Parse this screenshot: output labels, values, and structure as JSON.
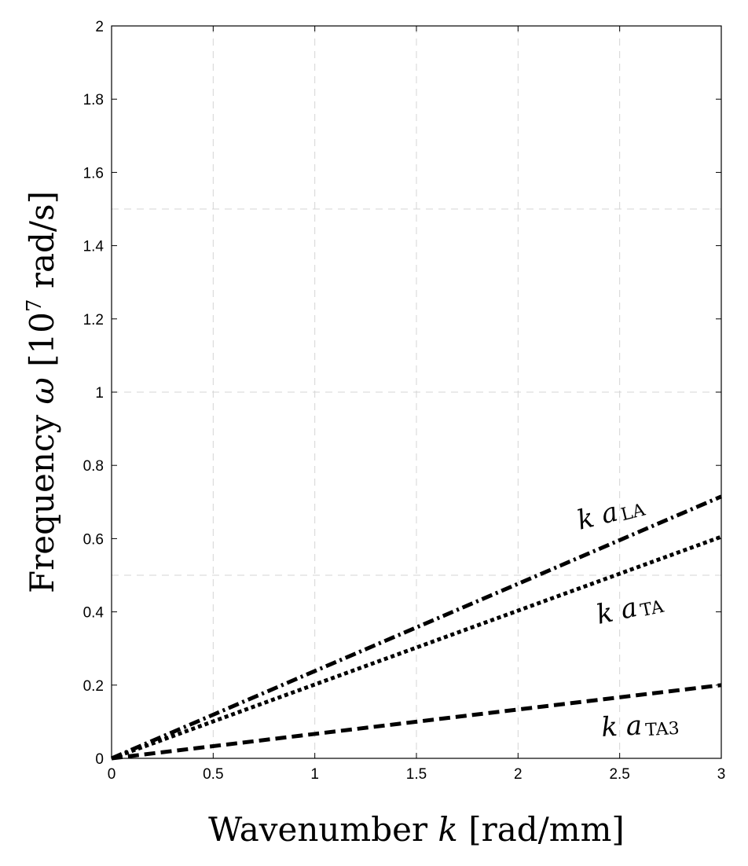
{
  "chart_data": {
    "type": "line",
    "xlabel_text": "Wavenumber",
    "xlabel_symbol": "k",
    "xlabel_unit": "[rad/mm]",
    "ylabel_text": "Frequency",
    "ylabel_symbol": "ω",
    "ylabel_unit_pre": "[10",
    "ylabel_unit_exp": "7",
    "ylabel_unit_post": " rad/s]",
    "xlim": [
      0,
      3
    ],
    "ylim": [
      0,
      2
    ],
    "grid": true,
    "legend": "none",
    "x_ticks": [
      {
        "value": 0,
        "label": "0"
      },
      {
        "value": 0.5,
        "label": "0.5"
      },
      {
        "value": 1,
        "label": "1"
      },
      {
        "value": 1.5,
        "label": "1.5"
      },
      {
        "value": 2,
        "label": "2"
      },
      {
        "value": 2.5,
        "label": "2.5"
      },
      {
        "value": 3,
        "label": "3"
      }
    ],
    "y_ticks": [
      {
        "value": 0,
        "label": "0"
      },
      {
        "value": 0.2,
        "label": "0.2"
      },
      {
        "value": 0.4,
        "label": "0.4"
      },
      {
        "value": 0.6,
        "label": "0.6"
      },
      {
        "value": 0.8,
        "label": "0.8"
      },
      {
        "value": 1,
        "label": "1"
      },
      {
        "value": 1.2,
        "label": "1.2"
      },
      {
        "value": 1.4,
        "label": "1.4"
      },
      {
        "value": 1.6,
        "label": "1.6"
      },
      {
        "value": 1.8,
        "label": "1.8"
      },
      {
        "value": 2,
        "label": "2"
      }
    ],
    "x_grid": [
      0.5,
      1,
      1.5,
      2,
      2.5
    ],
    "y_grid": [
      0.5,
      1,
      1.5
    ],
    "series": [
      {
        "name_main": "k a",
        "name_sub": "LA",
        "x": [
          0,
          3
        ],
        "y": [
          0,
          0.715
        ],
        "style": "dashdot",
        "color": "#000000"
      },
      {
        "name_main": "k a",
        "name_sub": "TA",
        "x": [
          0,
          3
        ],
        "y": [
          0,
          0.605
        ],
        "style": "dotted",
        "color": "#000000"
      },
      {
        "name_main": "k a",
        "name_sub": "TA3",
        "x": [
          0,
          3
        ],
        "y": [
          0,
          0.2
        ],
        "style": "dashed",
        "color": "#000000"
      }
    ]
  }
}
